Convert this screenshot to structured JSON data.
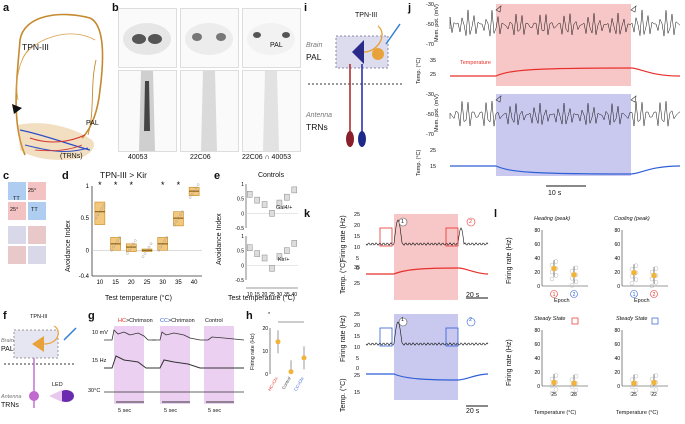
{
  "panel_letters": {
    "a": "a",
    "b": "b",
    "c": "c",
    "d": "d",
    "e": "e",
    "f": "f",
    "g": "g",
    "h": "h",
    "i": "i",
    "j": "j",
    "k": "k",
    "l": "l"
  },
  "panel_a": {
    "neuron_label": "TPN-III",
    "pal_label": "PAL",
    "trns_label": "(TRNs)"
  },
  "panel_b": {
    "pal_label": "PAL",
    "labels": [
      "40053",
      "22C06",
      "22C06 ∩ 40053"
    ]
  },
  "panel_c": {
    "tt_top": "TT",
    "tt_bottom": "TT",
    "temp_top": "25°",
    "temp_bottom": "25°"
  },
  "panel_d": {
    "title": "TPN-III > Kir",
    "ylabel": "Avoidance Index",
    "xlabel": "Test temperature (°C)",
    "chart_data": {
      "type": "box",
      "title": "TPN-III > Kir",
      "xlabel": "Test temperature (°C)",
      "ylabel": "Avoidance Index",
      "categories": [
        "10",
        "15",
        "20",
        "25",
        "30",
        "35",
        "40"
      ],
      "medians": [
        0.6,
        0.1,
        0.05,
        0.0,
        0.1,
        0.5,
        0.92
      ],
      "q1": [
        0.4,
        0.0,
        -0.02,
        -0.02,
        0.0,
        0.38,
        0.85
      ],
      "q3": [
        0.75,
        0.2,
        0.1,
        0.02,
        0.2,
        0.6,
        0.98
      ],
      "significance": [
        "*",
        "*",
        "*",
        "",
        "*",
        "*",
        ""
      ],
      "ylim": [
        -0.4,
        1.0
      ],
      "yticks": [
        "-0.4",
        "0",
        "0.5",
        "1"
      ],
      "xticks": [
        "10",
        "15",
        "20",
        "25",
        "30",
        "35",
        "40"
      ]
    }
  },
  "panel_e": {
    "title": "Controls",
    "ylabel": "Avoidance Index",
    "xlabel": "Test temperature (°C)",
    "label_top": "Gal4/+",
    "label_bottom": "Kir/+",
    "yticks": [
      "1",
      "0.5",
      "0",
      "-0.5"
    ],
    "xticks": [
      "10",
      "15",
      "20",
      "25",
      "30",
      "35",
      "40"
    ],
    "chart_data": [
      {
        "type": "box",
        "name": "Gal4/+",
        "medians": [
          0.65,
          0.45,
          0.3,
          0.0,
          0.35,
          0.55,
          0.8
        ]
      },
      {
        "type": "box",
        "name": "Kir/+",
        "medians": [
          0.6,
          0.4,
          0.25,
          -0.1,
          0.3,
          0.5,
          0.75
        ]
      }
    ]
  },
  "panel_f": {
    "neuron": "TPN-III",
    "brain": "Brain",
    "pal": "PAL",
    "led": "LED",
    "antenna": "Antenna",
    "trns": "TRNs"
  },
  "panel_g": {
    "hc_prefix": "HC",
    "cc_prefix": "CC",
    "chrimson": ">Chrimson",
    "control": "Control",
    "mem_pot": "Mem. pot.",
    "mv": "10 mV",
    "fr": "Firing rate",
    "hz": "15 Hz",
    "temp": "30°C",
    "temp25": "25",
    "sec": "5 sec"
  },
  "panel_h": {
    "ylabel": "Firing rate (Hz)",
    "yticks": [
      "20",
      "10",
      "0"
    ],
    "star": "*",
    "chart_data": {
      "type": "scatter",
      "categories": [
        "HC>Chr",
        "Control",
        "CC>Chr"
      ],
      "means": [
        14,
        1,
        7
      ]
    }
  },
  "panel_i": {
    "neuron": "TPN-III",
    "brain": "Brain",
    "pal": "PAL",
    "antenna": "Antenna",
    "trns": "TRNs"
  },
  "panel_j": {
    "yticks_mem": [
      "-30",
      "-50",
      "-70"
    ],
    "ylabel_mem": "Mem. pot. (mV)",
    "temp_label": "Temperature",
    "yticks_temp_top": [
      "35",
      "25"
    ],
    "yticks_temp_bottom": [
      "25",
      "15"
    ],
    "ylabel_temp": "Temp. (°C)",
    "scale": "10 s"
  },
  "panel_k": {
    "yticks_fr": [
      "25",
      "20",
      "15",
      "10",
      "5",
      "0"
    ],
    "ylabel_fr": "Firing rate (Hz)",
    "ylabel_temp": "Temp. (°C)",
    "yticks_temp_top": [
      "35",
      "25"
    ],
    "yticks_temp_bottom": [
      "25",
      "15"
    ],
    "marker1": "1",
    "marker2": "2",
    "scale": "20 s"
  },
  "panel_l": {
    "titles": [
      "Heating (peak)",
      "Cooling (peak)",
      "Steady State",
      "Steady State"
    ],
    "ylabel": "Firing rate (Hz)",
    "yticks": [
      "80",
      "60",
      "40",
      "20",
      "0"
    ],
    "epoch": "Epoch",
    "tempx": "Temperature (°C)",
    "x1": "1",
    "x2": "2",
    "x_heat": [
      "25",
      "28"
    ],
    "x_cool": [
      "25",
      "22"
    ],
    "chart_data": [
      {
        "type": "scatter",
        "name": "Heating (peak)",
        "categories": [
          "1",
          "2"
        ],
        "means": [
          25,
          16
        ]
      },
      {
        "type": "scatter",
        "name": "Cooling (peak)",
        "categories": [
          "1",
          "2"
        ],
        "means": [
          19,
          15
        ]
      },
      {
        "type": "scatter",
        "name": "Steady State (heat)",
        "categories": [
          "25",
          "28"
        ],
        "means": [
          5,
          4
        ]
      },
      {
        "type": "scatter",
        "name": "Steady State (cool)",
        "categories": [
          "25",
          "22"
        ],
        "means": [
          4,
          5
        ]
      }
    ]
  },
  "colors": {
    "orange": "#e8a23a",
    "gold": "#f0b43c",
    "red": "#e8302a",
    "blue": "#2f5fd6",
    "pink": "#f7c6c6",
    "lavender": "#c9c9ef",
    "magenta": "#e8c2ec"
  }
}
